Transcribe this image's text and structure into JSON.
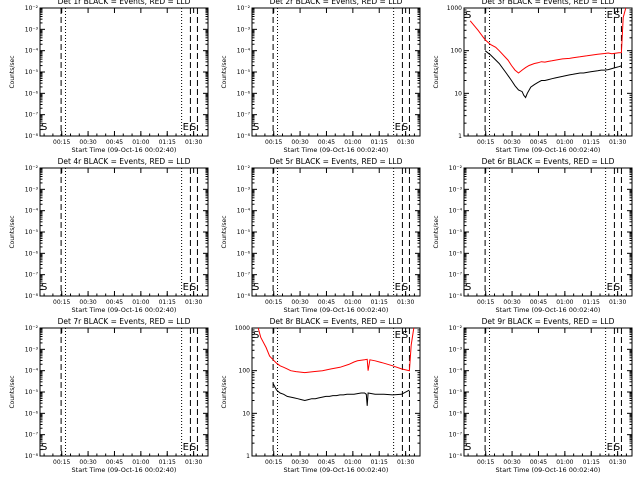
{
  "chart_data": [
    {
      "type": "line",
      "title": "Det 1r BLACK = Events, RED = LLD",
      "xlabel": "Start Time (09-Oct-16 00:02:40)",
      "ylabel": "Counts/sec",
      "yscale": "log",
      "ylim": [
        1e-08,
        0.01
      ],
      "y_ticklabels": [
        "10^-8",
        "10^-7",
        "10^-6",
        "10^-5",
        "10^-4",
        "10^-3",
        "10^-2"
      ],
      "series": []
    },
    {
      "type": "line",
      "title": "Det 2r BLACK = Events, RED = LLD",
      "xlabel": "Start Time (09-Oct-16 00:02:40)",
      "ylabel": "Counts/sec",
      "yscale": "log",
      "ylim": [
        1e-08,
        0.01
      ],
      "y_ticklabels": [
        "10^-8",
        "10^-7",
        "10^-6",
        "10^-5",
        "10^-4",
        "10^-3",
        "10^-2"
      ],
      "series": []
    },
    {
      "type": "line",
      "title": "Det 3r BLACK = Events, RED = LLD",
      "xlabel": "Start Time (09-Oct-16 00:02:40)",
      "ylabel": "Counts/sec",
      "yscale": "log",
      "ylim": [
        1,
        1000
      ],
      "y_ticklabels": [
        "1",
        "10",
        "100",
        "1000"
      ],
      "series": [
        {
          "color": "#ff0000",
          "x": [
            3.5,
            8,
            12,
            15,
            18,
            20,
            25,
            27,
            29,
            31,
            33,
            35,
            37,
            40,
            42,
            44,
            46,
            48,
            50,
            52,
            54,
            56,
            58,
            60,
            62,
            64,
            66,
            68,
            70,
            72,
            74,
            76,
            78,
            80,
            82,
            84,
            86,
            88,
            89.5,
            90.5,
            92
          ],
          "values": [
            500,
            300,
            180,
            140,
            120,
            100,
            60,
            45,
            35,
            30,
            35,
            40,
            45,
            50,
            52,
            55,
            54,
            56,
            58,
            60,
            62,
            64,
            65,
            66,
            68,
            70,
            72,
            74,
            76,
            78,
            80,
            82,
            84,
            86,
            88,
            85,
            87,
            89,
            90,
            600,
            1000
          ]
        },
        {
          "color": "#000000",
          "x": [
            12,
            15,
            20,
            24,
            27,
            29,
            31,
            33,
            34,
            35,
            36,
            38,
            40,
            42,
            44,
            46,
            48,
            50,
            52,
            54,
            56,
            58,
            60,
            62,
            64,
            66,
            68,
            70,
            72,
            74,
            76,
            78,
            80,
            82,
            84,
            86,
            88,
            89.5
          ],
          "values": [
            100,
            80,
            50,
            30,
            20,
            15,
            12,
            11,
            9,
            8,
            10,
            14,
            16,
            18,
            20,
            20,
            21,
            22,
            23,
            24,
            25,
            26,
            27,
            28,
            29,
            30,
            30,
            31,
            32,
            33,
            34,
            35,
            35,
            36,
            38,
            40,
            42,
            44
          ]
        }
      ]
    },
    {
      "type": "line",
      "title": "Det 4r BLACK = Events, RED = LLD",
      "xlabel": "Start Time (09-Oct-16 00:02:40)",
      "ylabel": "Counts/sec",
      "yscale": "log",
      "ylim": [
        1e-08,
        0.01
      ],
      "y_ticklabels": [
        "10^-8",
        "10^-7",
        "10^-6",
        "10^-5",
        "10^-4",
        "10^-3",
        "10^-2"
      ],
      "series": []
    },
    {
      "type": "line",
      "title": "Det 5r BLACK = Events, RED = LLD",
      "xlabel": "Start Time (09-Oct-16 00:02:40)",
      "ylabel": "Counts/sec",
      "yscale": "log",
      "ylim": [
        1e-08,
        0.01
      ],
      "y_ticklabels": [
        "10^-8",
        "10^-7",
        "10^-6",
        "10^-5",
        "10^-4",
        "10^-3",
        "10^-2"
      ],
      "series": []
    },
    {
      "type": "line",
      "title": "Det 6r BLACK = Events, RED = LLD",
      "xlabel": "Start Time (09-Oct-16 00:02:40)",
      "ylabel": "Counts/sec",
      "yscale": "log",
      "ylim": [
        1e-08,
        0.01
      ],
      "y_ticklabels": [
        "10^-8",
        "10^-7",
        "10^-6",
        "10^-5",
        "10^-4",
        "10^-3",
        "10^-2"
      ],
      "series": []
    },
    {
      "type": "line",
      "title": "Det 7r BLACK = Events, RED = LLD",
      "xlabel": "Start Time (09-Oct-16 00:02:40)",
      "ylabel": "Counts/sec",
      "yscale": "log",
      "ylim": [
        1e-08,
        0.01
      ],
      "y_ticklabels": [
        "10^-8",
        "10^-7",
        "10^-6",
        "10^-5",
        "10^-4",
        "10^-3",
        "10^-2"
      ],
      "series": []
    },
    {
      "type": "line",
      "title": "Det 8r BLACK = Events, RED = LLD",
      "xlabel": "Start Time (09-Oct-16 00:02:40)",
      "ylabel": "Counts/sec",
      "yscale": "log",
      "ylim": [
        1,
        1000
      ],
      "y_ticklabels": [
        "1",
        "10",
        "100",
        "1000"
      ],
      "series": [
        {
          "color": "#ff0000",
          "x": [
            3.5,
            5,
            8,
            10,
            12,
            14,
            16,
            18,
            20,
            22,
            25,
            30,
            35,
            40,
            45,
            50,
            55,
            58,
            60,
            62,
            64,
            65.5,
            66,
            67,
            70,
            75,
            80,
            85,
            89.5,
            90.5,
            92
          ],
          "values": [
            1000,
            600,
            350,
            220,
            180,
            150,
            130,
            120,
            110,
            100,
            95,
            90,
            95,
            100,
            110,
            120,
            140,
            160,
            170,
            175,
            180,
            185,
            100,
            180,
            170,
            150,
            130,
            110,
            100,
            400,
            1000
          ]
        },
        {
          "color": "#000000",
          "x": [
            12,
            14,
            16,
            18,
            20,
            22,
            24,
            26,
            28,
            30,
            32,
            34,
            36,
            38,
            40,
            42,
            44,
            46,
            48,
            50,
            52,
            54,
            56,
            58,
            60,
            62,
            64,
            65,
            65.5,
            66,
            68,
            70,
            75,
            80,
            85,
            89.5
          ],
          "values": [
            50,
            35,
            30,
            28,
            25,
            24,
            23,
            22,
            21,
            20,
            21,
            22,
            22,
            23,
            24,
            25,
            25,
            26,
            26,
            27,
            27,
            28,
            28,
            28,
            29,
            30,
            30,
            28,
            15,
            30,
            29,
            28,
            28,
            27,
            28,
            35
          ]
        }
      ]
    },
    {
      "type": "line",
      "title": "Det 9r BLACK = Events, RED = LLD",
      "xlabel": "Start Time (09-Oct-16 00:02:40)",
      "ylabel": "Counts/sec",
      "yscale": "log",
      "ylim": [
        1e-08,
        0.01
      ],
      "y_ticklabels": [
        "10^-8",
        "10^-7",
        "10^-6",
        "10^-5",
        "10^-4",
        "10^-3",
        "10^-2"
      ],
      "series": []
    }
  ],
  "x_ticklabels": [
    "00:15",
    "00:30",
    "00:45",
    "01:00",
    "01:15",
    "01:30"
  ],
  "x_ticks_min": [
    12.33,
    27.33,
    42.33,
    57.33,
    72.33,
    87.33
  ],
  "xlim_min": [
    0,
    95.5
  ],
  "vlines": [
    {
      "x": 12,
      "style": "dashed"
    },
    {
      "x": 14.5,
      "style": "dotted"
    },
    {
      "x": 80.5,
      "style": "dotted"
    },
    {
      "x": 85.5,
      "style": "dashed"
    },
    {
      "x": 89.5,
      "style": "dashed"
    }
  ],
  "marks": {
    "single": "S",
    "end": "E",
    "start2": "S"
  }
}
